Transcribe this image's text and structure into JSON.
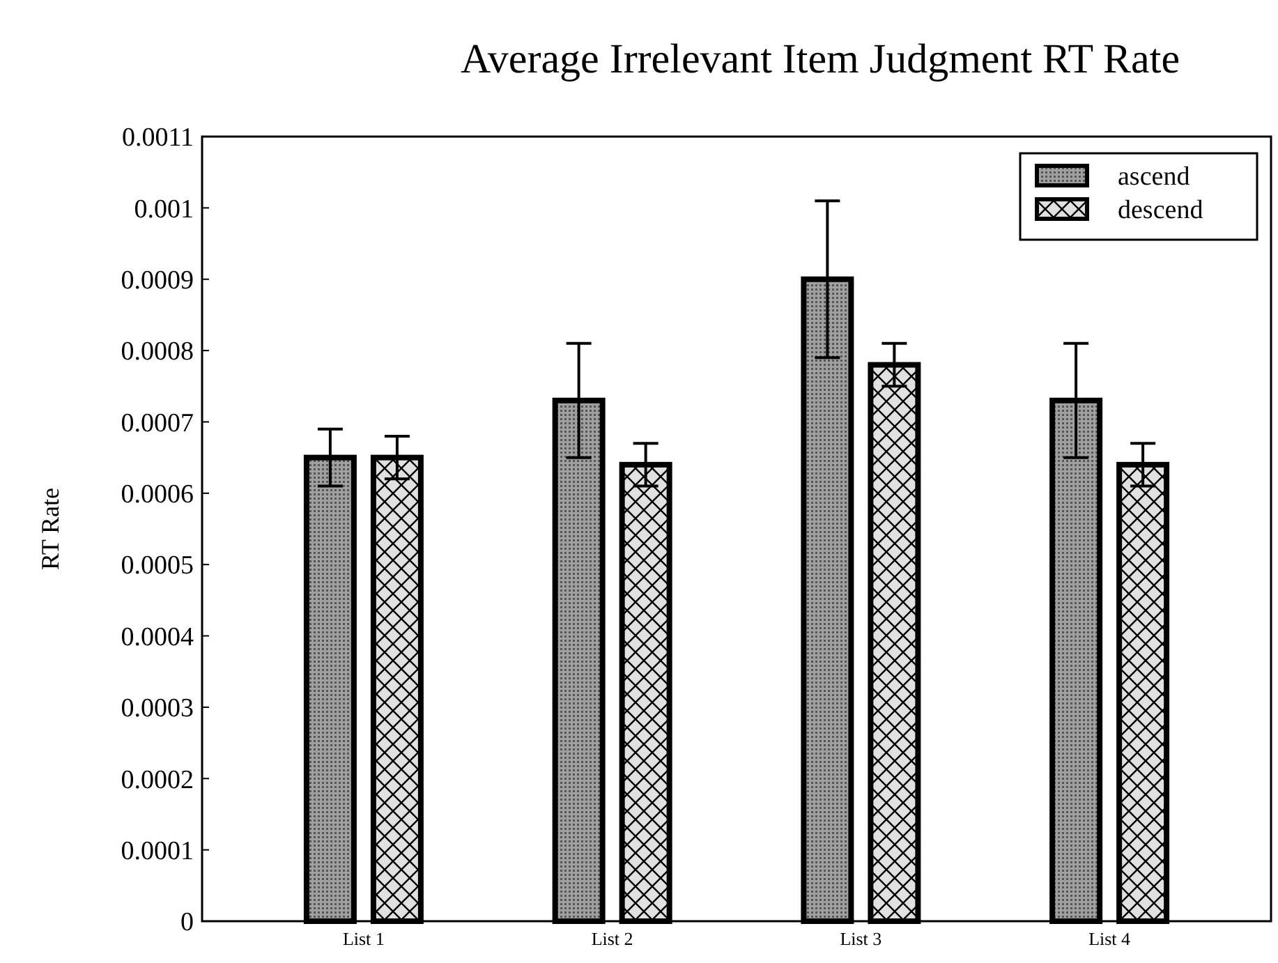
{
  "chart_data": {
    "type": "bar",
    "title": "Average Irrelevant Item Judgment RT Rate",
    "ylabel": "RT Rate",
    "categories": [
      "List 1",
      "List 2",
      "List 3",
      "List 4"
    ],
    "series": [
      {
        "name": "ascend",
        "color": "#a0a0a0",
        "values": [
          0.00065,
          0.00073,
          0.0009,
          0.00073
        ],
        "errors": [
          4e-05,
          8e-05,
          0.00011,
          8e-05
        ]
      },
      {
        "name": "descend",
        "color": "#e0e0e0",
        "values": [
          0.00065,
          0.00064,
          0.00078,
          0.00064
        ],
        "errors": [
          [
            0.00062,
            0.00068
          ],
          3e-05,
          3e-05,
          3e-05
        ]
      }
    ],
    "ylim": [
      0,
      0.0011
    ],
    "yticks": [
      0,
      0.0001,
      0.0002,
      0.0003,
      0.0004,
      0.0005,
      0.0006,
      0.0007,
      0.0008,
      0.0009,
      0.001,
      0.0011
    ],
    "grid": false,
    "legend": "top right"
  }
}
